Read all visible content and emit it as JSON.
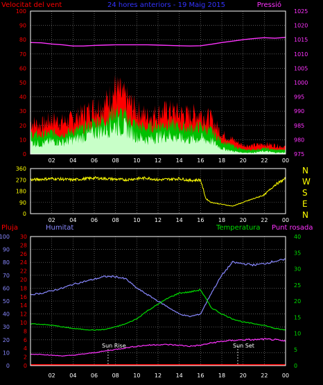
{
  "colors": {
    "background": "#000000",
    "grid": "#8a8a8a",
    "frame": "#ffffff",
    "wind_avg": "#ffffff",
    "wind_mid": "#00c000",
    "wind_gust": "#ff0000",
    "wind_low": "#c8ffc8",
    "pressure": "#ff33ff",
    "direction": "#ffff00",
    "rain": "#ff0000",
    "humidity": "#8888ff",
    "temperature": "#00dd00",
    "dewpoint": "#ff33ff",
    "sun": "#ffffff",
    "tick_text": "#ffffff"
  },
  "panel_wind": {
    "left_label": "Velocitat del vent",
    "title": "24 hores anteriors - 19 Maig 2015",
    "right_label": "Pressió"
  },
  "panel_direction": {
    "compass": [
      "N",
      "W",
      "S",
      "E",
      "N"
    ]
  },
  "panel_temp": {
    "rain_label": "Pluja",
    "humidity_label": "Humitat",
    "temperature_label": "Temperatura",
    "dewpoint_label": "Punt rosada",
    "sunrise_label": "Sun Rise",
    "sunset_label": "Sun Set"
  },
  "chart_data": [
    {
      "type": "line",
      "title": "24 hores anteriors - 19 Maig 2015",
      "x_ticks": [
        "02",
        "04",
        "06",
        "08",
        "10",
        "12",
        "14",
        "16",
        "18",
        "20",
        "22",
        "00"
      ],
      "y_left": {
        "label": "Velocitat del vent",
        "range": [
          0,
          100
        ],
        "ticks": [
          0,
          10,
          20,
          30,
          40,
          50,
          60,
          70,
          80,
          90,
          100
        ]
      },
      "y_right": {
        "label": "Pressió",
        "range": [
          975,
          1025
        ],
        "ticks": [
          975,
          980,
          985,
          990,
          995,
          1000,
          1005,
          1010,
          1015,
          1020,
          1025
        ]
      },
      "x_hours": [
        0,
        1,
        2,
        3,
        4,
        5,
        6,
        7,
        8,
        9,
        10,
        11,
        12,
        13,
        14,
        15,
        16,
        17,
        18,
        19,
        20,
        21,
        22,
        23,
        24
      ],
      "series": [
        {
          "name": "gust",
          "axis": "left",
          "values": [
            22,
            20,
            24,
            22,
            24,
            28,
            32,
            34,
            45,
            38,
            30,
            26,
            28,
            30,
            28,
            27,
            28,
            24,
            14,
            10,
            6,
            6,
            7,
            6,
            5
          ]
        },
        {
          "name": "avg",
          "axis": "left",
          "values": [
            14,
            13,
            15,
            14,
            16,
            18,
            22,
            24,
            30,
            26,
            20,
            18,
            20,
            21,
            19,
            18,
            19,
            16,
            9,
            6,
            3,
            3,
            4,
            3,
            3
          ]
        },
        {
          "name": "low",
          "axis": "left",
          "values": [
            8,
            7,
            9,
            8,
            10,
            12,
            15,
            17,
            20,
            18,
            12,
            10,
            12,
            13,
            11,
            10,
            11,
            9,
            4,
            2,
            1,
            1,
            2,
            1,
            1
          ]
        },
        {
          "name": "pressure",
          "axis": "right",
          "values": [
            1014,
            1013.9,
            1013.5,
            1013.2,
            1012.8,
            1012.8,
            1013,
            1013.1,
            1013.2,
            1013.2,
            1013.2,
            1013.2,
            1013.1,
            1013,
            1012.9,
            1012.8,
            1012.9,
            1013.4,
            1014,
            1014.5,
            1015,
            1015.4,
            1015.7,
            1015.5,
            1015.8
          ]
        }
      ]
    },
    {
      "type": "line",
      "x_ticks": [
        "02",
        "04",
        "06",
        "08",
        "10",
        "12",
        "14",
        "16",
        "18",
        "20",
        "22",
        "00"
      ],
      "y_left": {
        "range": [
          0,
          360
        ],
        "ticks": [
          0,
          90,
          180,
          270,
          360
        ]
      },
      "x_hours": [
        0,
        2,
        4,
        6,
        8,
        9,
        10,
        11,
        12,
        13,
        14,
        15,
        16,
        16.5,
        17,
        18,
        19,
        20,
        21,
        22,
        23,
        24
      ],
      "series": [
        {
          "name": "direction",
          "values": [
            270,
            280,
            270,
            285,
            275,
            270,
            280,
            285,
            270,
            275,
            280,
            265,
            270,
            120,
            90,
            75,
            60,
            90,
            120,
            150,
            230,
            280
          ]
        }
      ]
    },
    {
      "type": "line",
      "x_ticks": [
        "02",
        "04",
        "06",
        "08",
        "10",
        "12",
        "14",
        "16",
        "18",
        "20",
        "22",
        "00"
      ],
      "y_humidity": {
        "label": "Humitat",
        "range": [
          0,
          100
        ],
        "ticks": [
          0,
          10,
          20,
          30,
          40,
          50,
          60,
          70,
          80,
          90,
          100
        ]
      },
      "y_rain": {
        "label": "Pluja",
        "range": [
          0,
          30
        ],
        "ticks": [
          0,
          2,
          4,
          6,
          8,
          10,
          12,
          14,
          16,
          18,
          20,
          22,
          24,
          26,
          28,
          30
        ]
      },
      "y_temp": {
        "label": "Temperatura",
        "range": [
          0,
          40
        ],
        "ticks": [
          0,
          5,
          10,
          15,
          20,
          25,
          30,
          35,
          40
        ]
      },
      "sunrise_hour": 7.3,
      "sunset_hour": 19.5,
      "x_hours": [
        0,
        1,
        2,
        3,
        4,
        5,
        6,
        7,
        8,
        9,
        10,
        11,
        12,
        13,
        14,
        15,
        16,
        17,
        18,
        19,
        20,
        21,
        22,
        23,
        24
      ],
      "series": [
        {
          "name": "Humitat",
          "axis": "humidity",
          "values": [
            55,
            56,
            58,
            60,
            63,
            65,
            67,
            69,
            69,
            67,
            60,
            55,
            50,
            45,
            40,
            38,
            40,
            56,
            70,
            80,
            79,
            78,
            79,
            81,
            82
          ]
        },
        {
          "name": "Temperatura",
          "axis": "temp",
          "values": [
            13,
            12.8,
            12.5,
            12,
            11.5,
            11.2,
            11,
            11.2,
            12,
            13,
            14.5,
            17,
            19,
            21,
            22.5,
            22.8,
            23.5,
            18,
            16,
            14.5,
            13.5,
            13,
            12.5,
            11.5,
            11
          ]
        },
        {
          "name": "Punt rosada",
          "axis": "temp",
          "values": [
            3.5,
            3.5,
            3.2,
            3.0,
            3.2,
            3.6,
            4.0,
            4.5,
            5.0,
            5.5,
            6.0,
            6.3,
            6.5,
            6.5,
            6.3,
            6.0,
            6.3,
            7.0,
            7.5,
            7.8,
            8.0,
            8.0,
            8.2,
            8.0,
            7.5
          ]
        },
        {
          "name": "Pluja",
          "axis": "rain",
          "values": [
            0,
            0,
            0,
            0,
            0,
            0,
            0,
            0,
            0,
            0,
            0,
            0,
            0,
            0,
            0,
            0,
            0,
            0,
            0,
            0,
            0,
            0,
            0,
            0,
            0
          ]
        }
      ]
    }
  ]
}
